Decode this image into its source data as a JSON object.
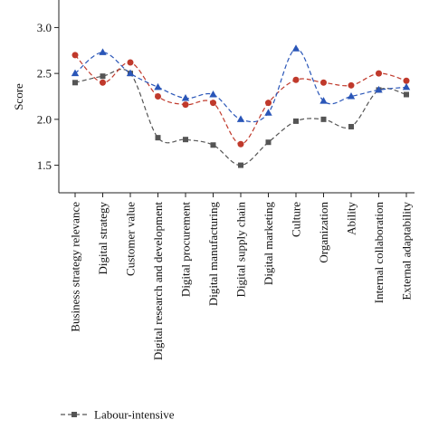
{
  "chart_data": {
    "type": "line",
    "title": "",
    "xlabel": "",
    "ylabel": "Score",
    "ylim": [
      1.2,
      3.3
    ],
    "yticks": [
      "1.5",
      "2.0",
      "2.5",
      "3.0"
    ],
    "grid": false,
    "legend_position": "bottom-left",
    "categories": [
      "Business strategy relevance",
      "Digital strategy",
      "Customer value",
      "Digital research and development",
      "Digital procurement",
      "Digital manufacturing",
      "Digital supply chain",
      "Digital marketing",
      "Culture",
      "Organization",
      "Ability",
      "Internal collaboration",
      "External adaptability"
    ],
    "series": [
      {
        "name": "Labour-intensive",
        "color": "#555555",
        "marker": "square",
        "values": [
          2.4,
          2.47,
          2.5,
          1.8,
          1.78,
          1.72,
          1.5,
          1.75,
          1.98,
          2.0,
          1.92,
          2.32,
          2.27
        ]
      },
      {
        "name": "",
        "color": "#c0392b",
        "marker": "circle",
        "values": [
          2.7,
          2.4,
          2.62,
          2.25,
          2.16,
          2.18,
          1.73,
          2.18,
          2.43,
          2.4,
          2.37,
          2.5,
          2.42
        ]
      },
      {
        "name": "",
        "color": "#2a56b8",
        "marker": "triangle",
        "values": [
          2.5,
          2.73,
          2.5,
          2.35,
          2.23,
          2.27,
          2.0,
          2.07,
          2.77,
          2.2,
          2.25,
          2.32,
          2.35
        ]
      }
    ]
  }
}
